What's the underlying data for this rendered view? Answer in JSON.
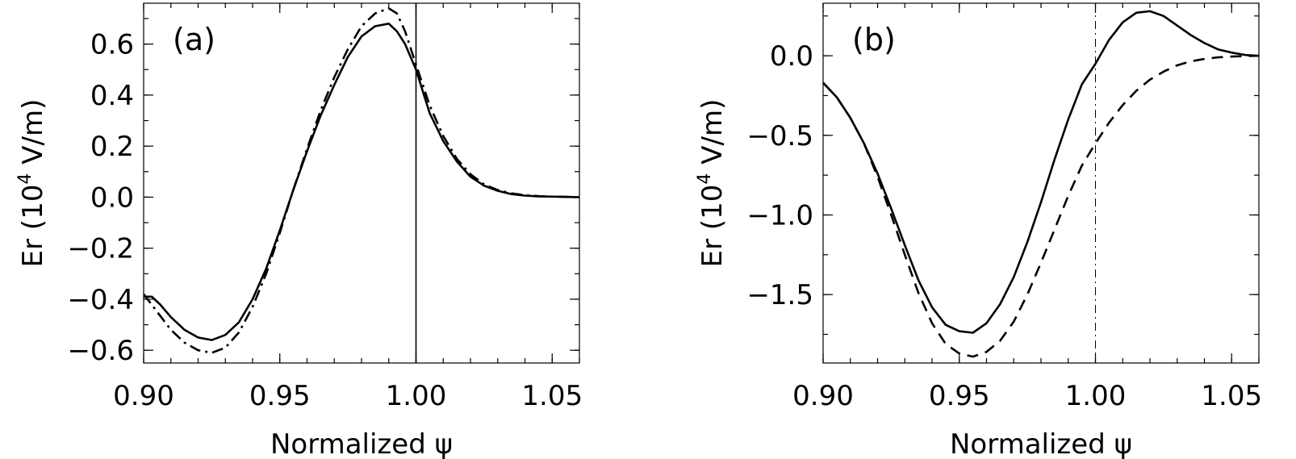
{
  "chart_data": [
    {
      "type": "line",
      "panel_label": "(a)",
      "xlabel": "Normalized ψ",
      "ylabel": "Er (10",
      "ylabel_sup": "4",
      "ylabel_end": " V/m)",
      "xlim": [
        0.9,
        1.06
      ],
      "ylim": [
        -0.65,
        0.76
      ],
      "xticks": [
        0.9,
        0.95,
        1.0,
        1.05
      ],
      "xtick_labels": [
        "0.90",
        "0.95",
        "1.00",
        "1.05"
      ],
      "yticks": [
        -0.6,
        -0.4,
        -0.2,
        0.0,
        0.2,
        0.4,
        0.6
      ],
      "ytick_labels": [
        "−0.6",
        "−0.4",
        "−0.2",
        "0.0",
        "0.2",
        "0.4",
        "0.6"
      ],
      "vline": {
        "x": 1.0,
        "style": "solid"
      },
      "grid": false,
      "series": [
        {
          "style": "solid",
          "x": [
            0.9,
            0.903,
            0.906,
            0.91,
            0.915,
            0.92,
            0.925,
            0.93,
            0.935,
            0.94,
            0.945,
            0.95,
            0.955,
            0.96,
            0.965,
            0.97,
            0.975,
            0.98,
            0.985,
            0.99,
            0.993,
            0.996,
            1.0,
            1.005,
            1.01,
            1.015,
            1.02,
            1.025,
            1.03,
            1.035,
            1.04,
            1.045,
            1.05,
            1.055,
            1.06
          ],
          "y": [
            -0.39,
            -0.39,
            -0.42,
            -0.47,
            -0.52,
            -0.55,
            -0.56,
            -0.54,
            -0.49,
            -0.4,
            -0.28,
            -0.13,
            0.03,
            0.18,
            0.32,
            0.44,
            0.55,
            0.63,
            0.67,
            0.68,
            0.65,
            0.6,
            0.5,
            0.33,
            0.22,
            0.14,
            0.08,
            0.045,
            0.025,
            0.012,
            0.006,
            0.003,
            0.002,
            0.001,
            0.0
          ]
        },
        {
          "style": "dashdot",
          "x": [
            0.9,
            0.905,
            0.91,
            0.915,
            0.92,
            0.925,
            0.93,
            0.935,
            0.94,
            0.945,
            0.95,
            0.955,
            0.96,
            0.965,
            0.97,
            0.975,
            0.98,
            0.985,
            0.99,
            0.993,
            0.996,
            1.0,
            1.005,
            1.01,
            1.015,
            1.02,
            1.025,
            1.03,
            1.035,
            1.04,
            1.045,
            1.05,
            1.055,
            1.06
          ],
          "y": [
            -0.38,
            -0.45,
            -0.52,
            -0.57,
            -0.6,
            -0.61,
            -0.59,
            -0.53,
            -0.43,
            -0.3,
            -0.14,
            0.03,
            0.19,
            0.34,
            0.47,
            0.58,
            0.67,
            0.72,
            0.74,
            0.72,
            0.65,
            0.52,
            0.36,
            0.24,
            0.15,
            0.09,
            0.05,
            0.028,
            0.015,
            0.008,
            0.004,
            0.002,
            0.001,
            0.0
          ]
        }
      ]
    },
    {
      "type": "line",
      "panel_label": "(b)",
      "xlabel": "Normalized ψ",
      "ylabel": "Er (10",
      "ylabel_sup": "4",
      "ylabel_end": " V/m)",
      "xlim": [
        0.9,
        1.06
      ],
      "ylim": [
        -1.93,
        0.33
      ],
      "xticks": [
        0.9,
        0.95,
        1.0,
        1.05
      ],
      "xtick_labels": [
        "0.90",
        "0.95",
        "1.00",
        "1.05"
      ],
      "yticks": [
        -1.5,
        -1.0,
        -0.5,
        0.0
      ],
      "ytick_labels": [
        "−1.5",
        "−1.0",
        "−0.5",
        "0.0"
      ],
      "vline": {
        "x": 1.0,
        "style": "dashdot"
      },
      "grid": false,
      "series": [
        {
          "style": "solid",
          "x": [
            0.9,
            0.905,
            0.91,
            0.915,
            0.92,
            0.925,
            0.93,
            0.935,
            0.94,
            0.945,
            0.95,
            0.955,
            0.96,
            0.965,
            0.97,
            0.975,
            0.98,
            0.985,
            0.99,
            0.995,
            1.0,
            1.005,
            1.01,
            1.015,
            1.02,
            1.025,
            1.03,
            1.035,
            1.04,
            1.045,
            1.05,
            1.055,
            1.06
          ],
          "y": [
            -0.17,
            -0.26,
            -0.39,
            -0.55,
            -0.74,
            -0.96,
            -1.19,
            -1.41,
            -1.58,
            -1.69,
            -1.73,
            -1.74,
            -1.68,
            -1.56,
            -1.39,
            -1.17,
            -0.92,
            -0.65,
            -0.4,
            -0.18,
            -0.05,
            0.1,
            0.21,
            0.27,
            0.28,
            0.25,
            0.19,
            0.13,
            0.08,
            0.04,
            0.02,
            0.005,
            0.0
          ]
        },
        {
          "style": "dashed",
          "x": [
            0.9,
            0.905,
            0.91,
            0.915,
            0.92,
            0.925,
            0.93,
            0.935,
            0.94,
            0.945,
            0.95,
            0.955,
            0.96,
            0.965,
            0.97,
            0.975,
            0.98,
            0.985,
            0.99,
            0.995,
            1.0,
            1.005,
            1.01,
            1.015,
            1.02,
            1.025,
            1.03,
            1.035,
            1.04,
            1.045,
            1.05,
            1.055,
            1.06
          ],
          "y": [
            -0.17,
            -0.26,
            -0.39,
            -0.55,
            -0.76,
            -1.0,
            -1.25,
            -1.49,
            -1.68,
            -1.81,
            -1.87,
            -1.89,
            -1.86,
            -1.79,
            -1.67,
            -1.5,
            -1.3,
            -1.09,
            -0.88,
            -0.69,
            -0.55,
            -0.42,
            -0.31,
            -0.22,
            -0.15,
            -0.1,
            -0.06,
            -0.035,
            -0.02,
            -0.01,
            -0.005,
            -0.002,
            0.0
          ]
        }
      ]
    }
  ]
}
